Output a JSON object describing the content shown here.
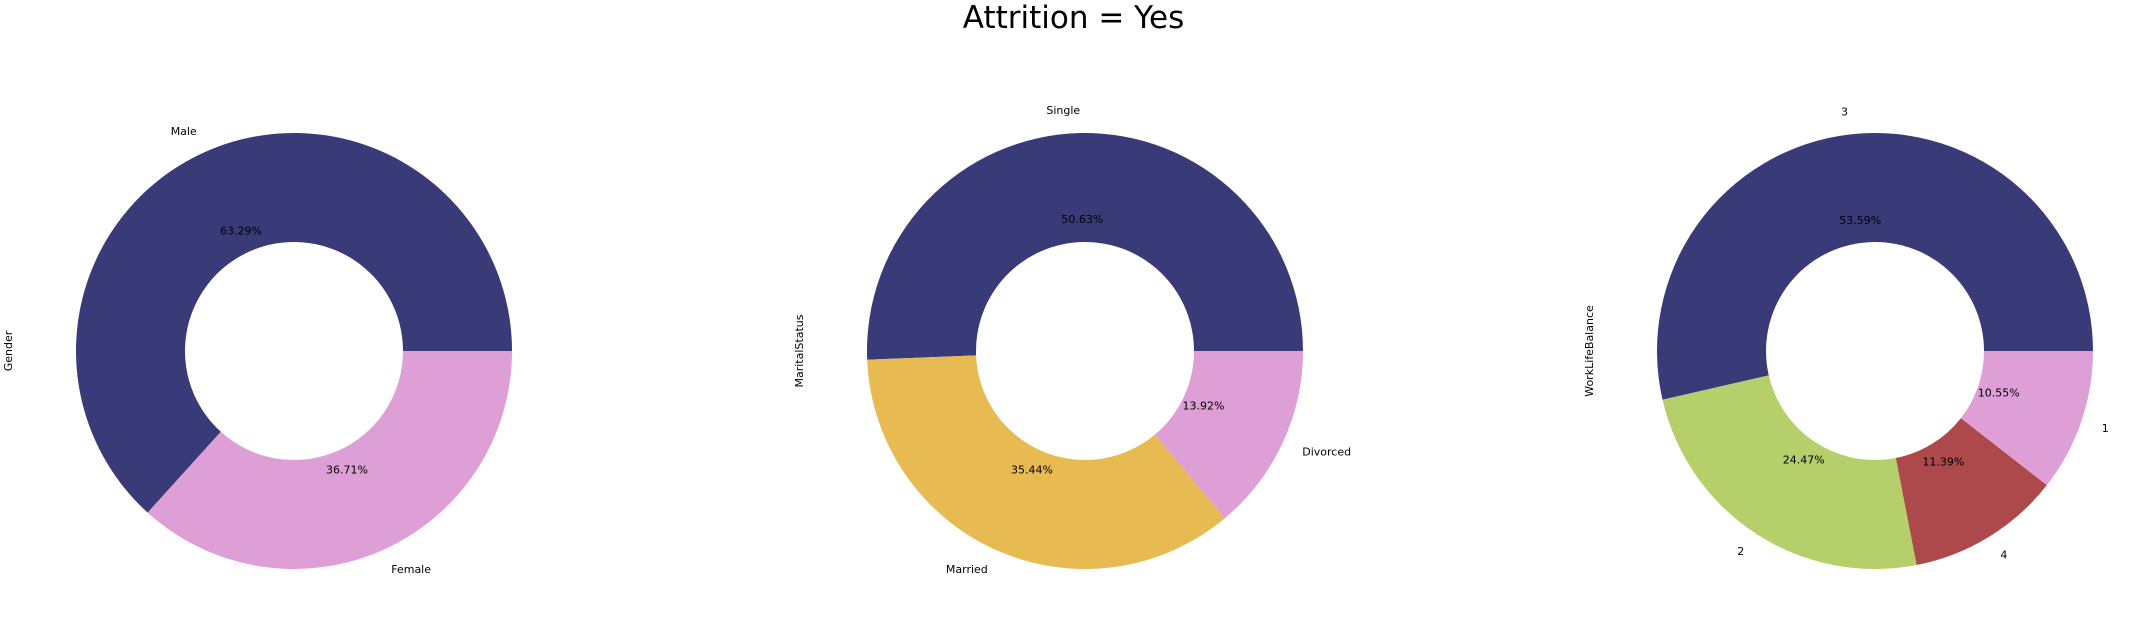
{
  "suptitle": "Attrition = Yes",
  "chart_data": [
    {
      "type": "pie",
      "style": "donut",
      "ylabel": "Gender",
      "labels": [
        "Male",
        "Female"
      ],
      "values": [
        63.29,
        36.71
      ],
      "value_labels": [
        "63.29%",
        "36.71%"
      ],
      "colors": [
        "#393b79",
        "#de9ed6"
      ]
    },
    {
      "type": "pie",
      "style": "donut",
      "ylabel": "MaritalStatus",
      "labels": [
        "Single",
        "Married",
        "Divorced"
      ],
      "values": [
        50.63,
        35.44,
        13.92
      ],
      "value_labels": [
        "50.63%",
        "35.44%",
        "13.92%"
      ],
      "colors": [
        "#393b79",
        "#e7ba52",
        "#de9ed6"
      ]
    },
    {
      "type": "pie",
      "style": "donut",
      "ylabel": "WorkLifeBalance",
      "labels": [
        "3",
        "2",
        "4",
        "1"
      ],
      "values": [
        53.59,
        24.47,
        11.39,
        10.55
      ],
      "value_labels": [
        "53.59%",
        "24.47%",
        "11.39%",
        "10.55%"
      ],
      "colors": [
        "#393b79",
        "#b5cf6b",
        "#ad494a",
        "#de9ed6"
      ]
    }
  ]
}
